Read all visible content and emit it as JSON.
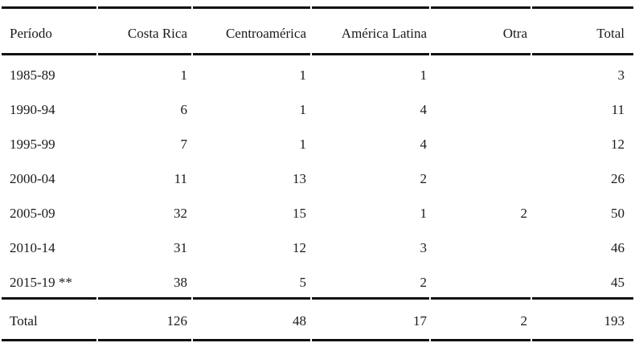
{
  "table": {
    "header": [
      "Período",
      "Costa Rica",
      "Centroamérica",
      "América Latina",
      "Otra",
      "Total"
    ],
    "rows": [
      [
        "1985-89",
        "1",
        "1",
        "1",
        "",
        "3"
      ],
      [
        "1990-94",
        "6",
        "1",
        "4",
        "",
        "11"
      ],
      [
        "1995-99",
        "7",
        "1",
        "4",
        "",
        "12"
      ],
      [
        "2000-04",
        "11",
        "13",
        "2",
        "",
        "26"
      ],
      [
        "2005-09",
        "32",
        "15",
        "1",
        "2",
        "50"
      ],
      [
        "2010-14",
        "31",
        "12",
        "3",
        "",
        "46"
      ],
      [
        "2015-19 **",
        "38",
        "5",
        "2",
        "",
        "45"
      ]
    ],
    "footer": [
      "Total",
      "126",
      "48",
      "17",
      "2",
      "193"
    ]
  },
  "colors": {
    "rule": "#101010",
    "text": "#1a1a1a",
    "background": "#ffffff"
  }
}
